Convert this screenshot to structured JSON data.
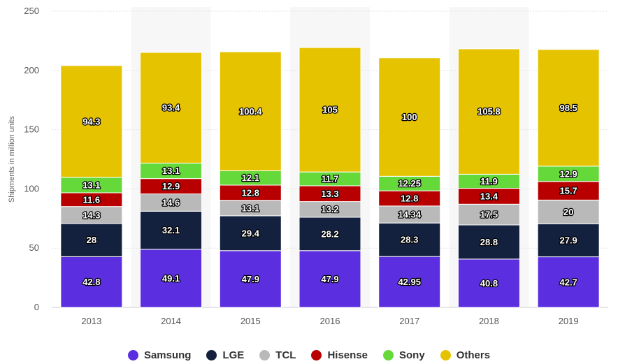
{
  "chart_data": {
    "type": "bar",
    "stacked": true,
    "title": "",
    "xlabel": "",
    "ylabel": "Shipments in million units",
    "ylim": [
      0,
      250
    ],
    "yticks": [
      0,
      50,
      100,
      150,
      200,
      250
    ],
    "grid": true,
    "legend_position": "bottom",
    "categories": [
      "2013",
      "2014",
      "2015",
      "2016",
      "2017",
      "2018",
      "2019"
    ],
    "series": [
      {
        "name": "Samsung",
        "color": "#5b2ee0",
        "values": [
          42.8,
          49.1,
          47.9,
          47.9,
          42.95,
          40.8,
          42.7
        ]
      },
      {
        "name": "LGE",
        "color": "#13213f",
        "values": [
          28,
          32.1,
          29.4,
          28.2,
          28.3,
          28.8,
          27.9
        ]
      },
      {
        "name": "TCL",
        "color": "#b9b9b9",
        "values": [
          14.3,
          14.6,
          13.1,
          13.2,
          14.34,
          17.5,
          20
        ]
      },
      {
        "name": "Hisense",
        "color": "#b80000",
        "values": [
          11.6,
          12.9,
          12.8,
          13.3,
          12.8,
          13.4,
          15.7
        ]
      },
      {
        "name": "Sony",
        "color": "#66d93a",
        "values": [
          13.1,
          13.1,
          12.1,
          11.7,
          12.25,
          11.9,
          12.9
        ]
      },
      {
        "name": "Others",
        "color": "#e6c300",
        "values": [
          94.3,
          93.4,
          100.4,
          105,
          100,
          105.8,
          98.5
        ]
      }
    ]
  }
}
